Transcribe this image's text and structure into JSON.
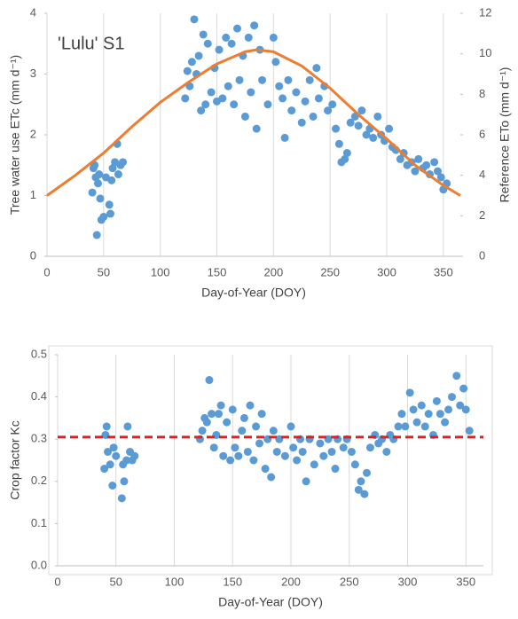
{
  "chart_data": [
    {
      "type": "scatter",
      "annotation": "'Lulu' S1",
      "x_label": "Day-of-Year (DOY)",
      "y_label": "Tree water use ETc  (mm d⁻¹)",
      "y2_label": "Reference ETo  (mm d⁻¹)",
      "xlim": [
        0,
        365
      ],
      "xticks": [
        0,
        50,
        100,
        150,
        200,
        250,
        300,
        350
      ],
      "ylim": [
        0,
        4
      ],
      "yticks": [
        0,
        1,
        2,
        3,
        4
      ],
      "y2lim": [
        0,
        12
      ],
      "y2ticks": [
        0,
        2,
        4,
        6,
        8,
        10,
        12
      ],
      "grid": "x",
      "series": [
        {
          "type": "scatter",
          "color": "#5b9bd5",
          "x": [
            40,
            41,
            42,
            43,
            44,
            45,
            46,
            47,
            48,
            50,
            52,
            55,
            56,
            57,
            58,
            60,
            62,
            63,
            65,
            67,
            122,
            124,
            126,
            128,
            130,
            132,
            134,
            136,
            138,
            140,
            142,
            145,
            148,
            150,
            152,
            155,
            158,
            160,
            163,
            165,
            168,
            170,
            173,
            175,
            178,
            180,
            183,
            185,
            188,
            190,
            195,
            200,
            202,
            205,
            208,
            210,
            213,
            216,
            220,
            225,
            228,
            232,
            235,
            238,
            240,
            245,
            248,
            252,
            255,
            258,
            260,
            263,
            265,
            268,
            272,
            275,
            278,
            282,
            285,
            288,
            292,
            295,
            298,
            302,
            305,
            308,
            312,
            315,
            318,
            322,
            325,
            328,
            332,
            335,
            338,
            342,
            345,
            348,
            350,
            353
          ],
          "values": [
            1.05,
            1.45,
            1.5,
            1.3,
            0.35,
            1.2,
            1.35,
            0.95,
            0.6,
            0.65,
            1.3,
            0.85,
            0.7,
            1.25,
            1.45,
            1.55,
            1.85,
            1.35,
            1.5,
            1.55,
            2.6,
            3.05,
            2.8,
            3.2,
            3.9,
            3.0,
            3.3,
            2.4,
            3.65,
            2.5,
            3.5,
            2.7,
            3.1,
            2.55,
            3.4,
            2.6,
            3.6,
            2.8,
            3.5,
            2.5,
            3.75,
            2.9,
            3.3,
            2.3,
            3.6,
            2.7,
            3.8,
            2.1,
            3.4,
            2.9,
            2.5,
            3.6,
            3.2,
            2.8,
            2.6,
            1.95,
            2.9,
            2.4,
            2.7,
            2.2,
            2.55,
            2.9,
            2.3,
            3.1,
            2.6,
            2.8,
            2.4,
            2.5,
            2.1,
            1.85,
            1.55,
            1.6,
            1.7,
            2.2,
            2.3,
            2.15,
            2.4,
            2.0,
            2.1,
            1.95,
            2.3,
            2.0,
            1.9,
            2.1,
            1.8,
            1.75,
            1.6,
            1.7,
            1.5,
            1.55,
            1.4,
            1.6,
            1.45,
            1.5,
            1.35,
            1.55,
            1.4,
            1.3,
            1.1,
            1.2
          ]
        },
        {
          "type": "line",
          "color": "#ed7d31",
          "axis": "y2",
          "x": [
            0,
            25,
            50,
            75,
            100,
            125,
            150,
            175,
            185,
            200,
            225,
            250,
            275,
            300,
            325,
            350,
            365
          ],
          "values": [
            3.0,
            4.0,
            5.1,
            6.4,
            7.6,
            8.6,
            9.5,
            10.1,
            10.2,
            10.1,
            9.4,
            8.3,
            7.0,
            5.8,
            4.5,
            3.5,
            3.0
          ]
        }
      ]
    },
    {
      "type": "scatter",
      "x_label": "Day-of-Year (DOY)",
      "y_label": "Crop factor Kc",
      "xlim": [
        0,
        365
      ],
      "xticks": [
        0,
        50,
        100,
        150,
        200,
        250,
        300,
        350
      ],
      "ylim": [
        0,
        0.5
      ],
      "yticks": [
        {
          "value": 0,
          "label": "0.0"
        },
        0.1,
        0.2,
        0.3,
        0.4,
        0.5
      ],
      "grid": "x",
      "reference_line": {
        "value": 0.305,
        "color": "#e02020"
      },
      "series": [
        {
          "type": "scatter",
          "color": "#5b9bd5",
          "x": [
            40,
            41,
            42,
            43,
            45,
            47,
            48,
            50,
            55,
            56,
            57,
            59,
            60,
            62,
            64,
            66,
            122,
            124,
            126,
            128,
            130,
            132,
            134,
            136,
            138,
            140,
            142,
            145,
            148,
            150,
            152,
            155,
            158,
            160,
            163,
            165,
            168,
            170,
            173,
            175,
            178,
            180,
            183,
            185,
            188,
            190,
            195,
            200,
            202,
            205,
            208,
            210,
            213,
            216,
            220,
            225,
            228,
            232,
            235,
            238,
            240,
            245,
            248,
            252,
            255,
            258,
            260,
            263,
            265,
            268,
            272,
            275,
            278,
            282,
            285,
            288,
            292,
            295,
            298,
            302,
            305,
            308,
            312,
            315,
            318,
            322,
            325,
            328,
            332,
            335,
            338,
            342,
            345,
            348,
            350,
            353
          ],
          "values": [
            0.23,
            0.31,
            0.33,
            0.27,
            0.24,
            0.19,
            0.28,
            0.26,
            0.16,
            0.24,
            0.2,
            0.25,
            0.33,
            0.27,
            0.25,
            0.26,
            0.3,
            0.32,
            0.35,
            0.34,
            0.44,
            0.36,
            0.28,
            0.31,
            0.36,
            0.38,
            0.26,
            0.34,
            0.25,
            0.37,
            0.28,
            0.26,
            0.32,
            0.35,
            0.27,
            0.38,
            0.25,
            0.33,
            0.29,
            0.36,
            0.23,
            0.3,
            0.21,
            0.32,
            0.27,
            0.3,
            0.26,
            0.33,
            0.28,
            0.25,
            0.3,
            0.27,
            0.2,
            0.3,
            0.24,
            0.29,
            0.26,
            0.3,
            0.27,
            0.23,
            0.3,
            0.28,
            0.3,
            0.27,
            0.24,
            0.18,
            0.2,
            0.17,
            0.22,
            0.28,
            0.31,
            0.29,
            0.3,
            0.27,
            0.31,
            0.3,
            0.33,
            0.36,
            0.33,
            0.41,
            0.37,
            0.34,
            0.38,
            0.33,
            0.36,
            0.31,
            0.39,
            0.36,
            0.34,
            0.37,
            0.4,
            0.45,
            0.38,
            0.42,
            0.37,
            0.32
          ]
        }
      ]
    }
  ]
}
